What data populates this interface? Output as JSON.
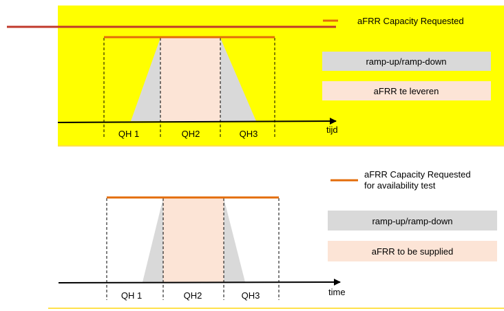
{
  "colors": {
    "panel_bg": "#ffff00",
    "capacity_line": "#e36c0a",
    "red_line": "#c0392b",
    "ramp": "#d9d9d9",
    "supply": "#fce4d6",
    "axis": "#000000",
    "rule": "#ffe14a"
  },
  "top_panel": {
    "legend_capacity": "aFRR Capacity Requested",
    "legend_ramp": "ramp-up/ramp-down",
    "legend_supply": "aFRR te leveren",
    "axis_label": "tijd",
    "periods": [
      "QH 1",
      "QH2",
      "QH3"
    ]
  },
  "bottom_panel": {
    "legend_capacity_line1": "aFRR Capacity Requested",
    "legend_capacity_line2": "for availability test",
    "legend_ramp": "ramp-up/ramp-down",
    "legend_supply": "aFRR to be supplied",
    "axis_label": "time",
    "periods": [
      "QH 1",
      "QH2",
      "QH3"
    ]
  }
}
